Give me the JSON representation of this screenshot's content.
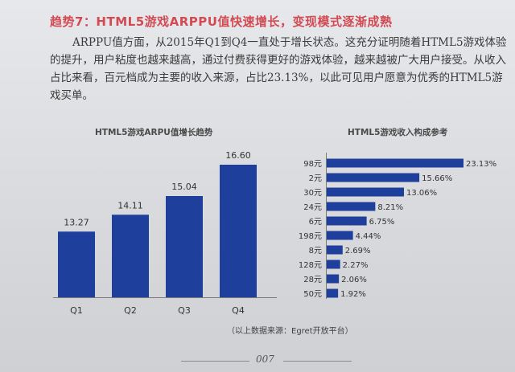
{
  "heading": "趋势7：HTML5游戏ARPPU值快速增长，变现模式逐渐成熟",
  "paragraph": "ARPPU值方面，从2015年Q1到Q4一直处于增长状态。这充分证明随着HTML5游戏体验的提升，用户粘度也越来越高，通过付费获得更好的游戏体验，越来越被广大用户接受。从收入占比来看，百元档成为主要的收入来源，占比23.13%，以此可见用户愿意为优秀的HTML5游戏买单。",
  "source": "（以上数据来源：Egret开放平台）",
  "page_number": "007",
  "colors": {
    "bar": "#1f3f9c",
    "heading": "#d24a52"
  },
  "chart_data": [
    {
      "type": "bar",
      "title": "HTML5游戏ARPU值增长趋势",
      "categories": [
        "Q1",
        "Q2",
        "Q3",
        "Q4"
      ],
      "values": [
        13.27,
        14.11,
        15.04,
        16.6
      ],
      "value_labels": [
        "13.27",
        "14.11",
        "15.04",
        "16.60"
      ],
      "ylim": [
        10,
        17
      ]
    },
    {
      "type": "bar",
      "orientation": "horizontal",
      "title": "HTML5游戏收入构成参考",
      "categories": [
        "98元",
        "2元",
        "30元",
        "24元",
        "6元",
        "198元",
        "8元",
        "128元",
        "28元",
        "50元"
      ],
      "values": [
        23.13,
        15.66,
        13.06,
        8.21,
        6.75,
        4.44,
        2.69,
        2.27,
        2.06,
        1.92
      ],
      "value_labels": [
        "23.13%",
        "15.66%",
        "13.06%",
        "8.21%",
        "6.75%",
        "4.44%",
        "2.69%",
        "2.27%",
        "2.06%",
        "1.92%"
      ],
      "xlim": [
        0,
        23.13
      ]
    }
  ]
}
